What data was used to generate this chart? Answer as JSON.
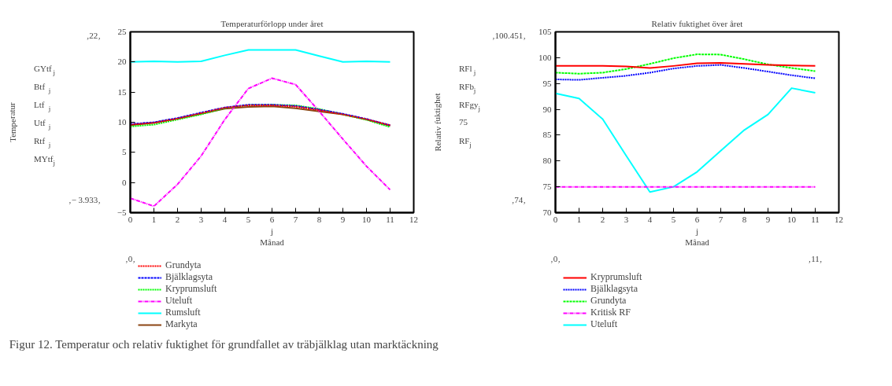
{
  "chart_data": [
    {
      "type": "line",
      "title": "Temperaturförlopp under året",
      "xlabel": "j\nMånad",
      "ylabel": "Temperatur",
      "x": [
        0,
        1,
        2,
        3,
        4,
        5,
        6,
        7,
        8,
        9,
        10,
        11
      ],
      "xlim": [
        0,
        12
      ],
      "xticks": [
        0,
        1,
        2,
        3,
        4,
        5,
        6,
        7,
        8,
        9,
        10,
        11,
        12
      ],
      "ylim": [
        -5,
        25
      ],
      "yticks": [
        -5,
        0,
        5,
        10,
        15,
        20,
        25
      ],
      "grid": false,
      "legend": "bottom",
      "series": [
        {
          "name": "Grundyta",
          "color": "#ff0000",
          "line_style": "dotted",
          "values": [
            9.6,
            9.9,
            10.6,
            11.5,
            12.4,
            12.8,
            12.8,
            12.6,
            12.0,
            11.3,
            10.5,
            9.5
          ]
        },
        {
          "name": "Bjälklagsyta",
          "color": "#0000ff",
          "line_style": "dashed",
          "values": [
            9.7,
            10.0,
            10.7,
            11.6,
            12.45,
            12.9,
            12.9,
            12.7,
            12.1,
            11.4,
            10.55,
            9.5
          ]
        },
        {
          "name": "Kryprumsluft",
          "color": "#00ff00",
          "line_style": "dotted",
          "values": [
            9.3,
            9.6,
            10.45,
            11.3,
            12.35,
            12.85,
            12.9,
            12.8,
            12.2,
            11.3,
            10.4,
            9.2
          ]
        },
        {
          "name": "Uteluft",
          "color": "#ff00ff",
          "line_style": "dashdot",
          "values": [
            -2.6,
            -3.933,
            -0.3,
            4.4,
            10.45,
            15.6,
            17.3,
            16.25,
            11.8,
            7.2,
            2.7,
            -1.2
          ]
        },
        {
          "name": "Rumsluft",
          "color": "#00ffff",
          "line_style": "solid",
          "values": [
            20,
            20.1,
            20,
            20.1,
            21.1,
            22,
            22,
            22,
            21,
            20,
            20.1,
            20
          ]
        },
        {
          "name": "Markyta",
          "color": "#8b4513",
          "line_style": "solid",
          "values": [
            9.5,
            9.9,
            10.6,
            11.4,
            12.25,
            12.55,
            12.65,
            12.3,
            11.8,
            11.3,
            10.45,
            9.4
          ]
        }
      ],
      "annotations": [
        "GYtf$_{j}$",
        "Btf$_{j}$",
        "Ltf$_{j}$",
        "Utf$_{j}$",
        "Rtf$_{j}$",
        "MYtf$_{j}$",
        "‚22‚",
        "‚− 3.933‚",
        "‚0‚"
      ]
    },
    {
      "type": "line",
      "title": "Relativ fuktighet över året",
      "xlabel": "j\nMånad",
      "ylabel": "Relativ fuktighet",
      "x": [
        0,
        1,
        2,
        3,
        4,
        5,
        6,
        7,
        8,
        9,
        10,
        11
      ],
      "xlim": [
        0,
        12
      ],
      "xticks": [
        0,
        1,
        2,
        3,
        4,
        5,
        6,
        7,
        8,
        9,
        10,
        11,
        12
      ],
      "ylim": [
        70,
        105
      ],
      "yticks": [
        70,
        75,
        80,
        85,
        90,
        95,
        100,
        105
      ],
      "grid": false,
      "legend": "bottom",
      "series": [
        {
          "name": "Kryprumsluft",
          "color": "#ff0000",
          "line_style": "solid",
          "values": [
            98.4,
            98.4,
            98.4,
            98.3,
            98.0,
            98.4,
            98.9,
            99.0,
            98.8,
            98.6,
            98.5,
            98.4
          ]
        },
        {
          "name": "Bjälklagsyta",
          "color": "#0000ff",
          "line_style": "dotted",
          "values": [
            95.8,
            95.7,
            96.1,
            96.5,
            97.1,
            97.9,
            98.4,
            98.6,
            98.0,
            97.3,
            96.6,
            96.0
          ]
        },
        {
          "name": "Grundyta",
          "color": "#00ff00",
          "line_style": "dashed",
          "values": [
            97.1,
            96.9,
            97.1,
            97.8,
            98.8,
            99.9,
            100.65,
            100.6,
            99.7,
            98.7,
            98.0,
            97.4
          ]
        },
        {
          "name": "Kritisk RF",
          "color": "#ff00ff",
          "line_style": "dashdot",
          "values": [
            75,
            75,
            75,
            75,
            75,
            75,
            75,
            75,
            75,
            75,
            75,
            75
          ]
        },
        {
          "name": "Uteluft",
          "color": "#00ffff",
          "line_style": "solid",
          "values": [
            93.1,
            92.1,
            88.1,
            81.0,
            74.0,
            75.0,
            77.9,
            82.0,
            86.0,
            89.0,
            94.1,
            93.2
          ]
        }
      ],
      "annotations": [
        "RFl$_{j}$",
        "RFb$_{j}$",
        "RFgy$_{j}$",
        "75",
        "RF$_{j}$",
        "‚100.451‚",
        "‚74‚",
        "‚0‚",
        "‚11‚"
      ]
    },
    {
      "type": "other",
      "annotations": [
        "Figur 12. Temperatur och relativ fuktighet för grundfallet av träbjälklag utan marktäckning"
      ]
    }
  ]
}
